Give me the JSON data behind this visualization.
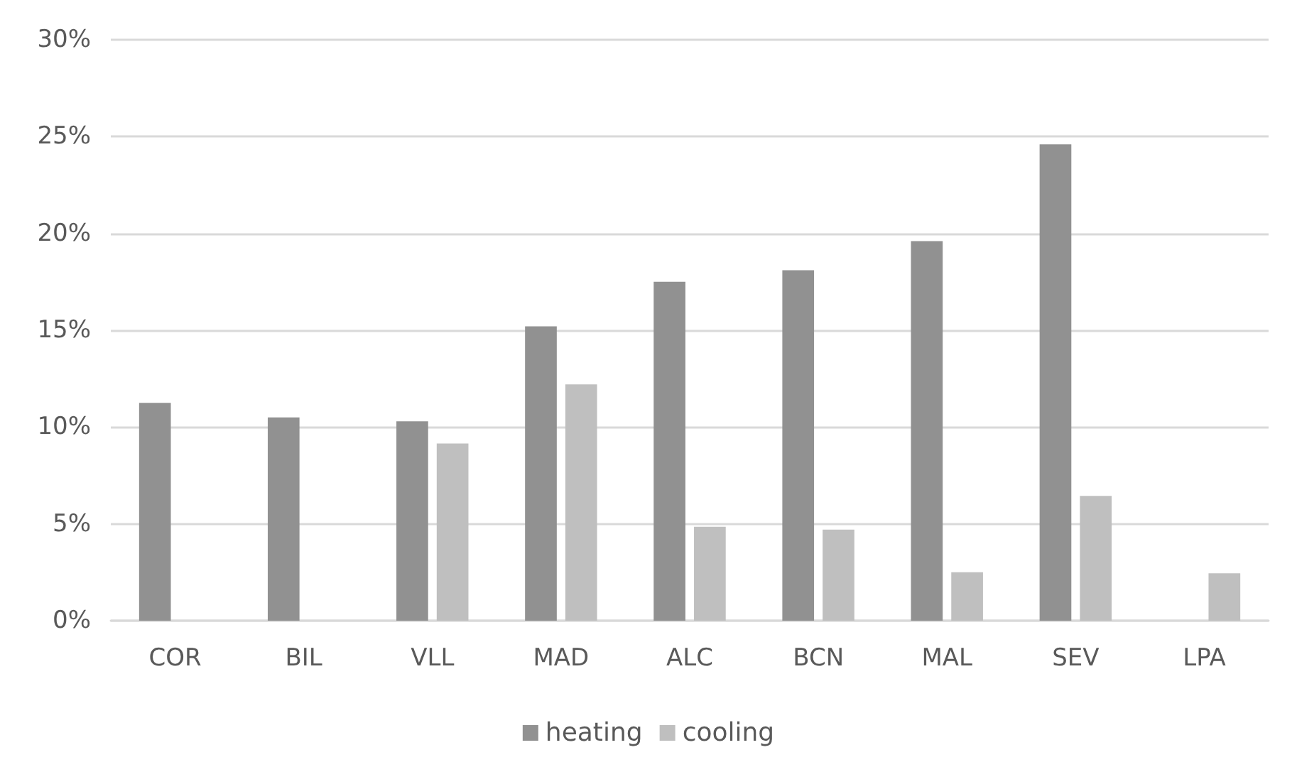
{
  "chart_data": {
    "type": "bar",
    "categories": [
      "COR",
      "BIL",
      "VLL",
      "MAD",
      "ALC",
      "BCN",
      "MAL",
      "SEV",
      "LPA"
    ],
    "series": [
      {
        "name": "heating",
        "color": "#919191",
        "values": [
          11.25,
          10.5,
          10.3,
          15.2,
          17.5,
          18.1,
          19.6,
          24.6,
          null
        ]
      },
      {
        "name": "cooling",
        "color": "#bfbfbf",
        "values": [
          null,
          null,
          9.15,
          12.2,
          4.85,
          4.7,
          2.5,
          6.45,
          2.45
        ]
      }
    ],
    "ylim": [
      0,
      30
    ],
    "yticks": [
      {
        "value": 0,
        "label": "0%"
      },
      {
        "value": 5,
        "label": "5%"
      },
      {
        "value": 10,
        "label": "10%"
      },
      {
        "value": 15,
        "label": "15%"
      },
      {
        "value": 20,
        "label": "20%"
      },
      {
        "value": 25,
        "label": "25%"
      },
      {
        "value": 30,
        "label": "30%"
      }
    ],
    "grid": "y",
    "legend": "bottom"
  }
}
